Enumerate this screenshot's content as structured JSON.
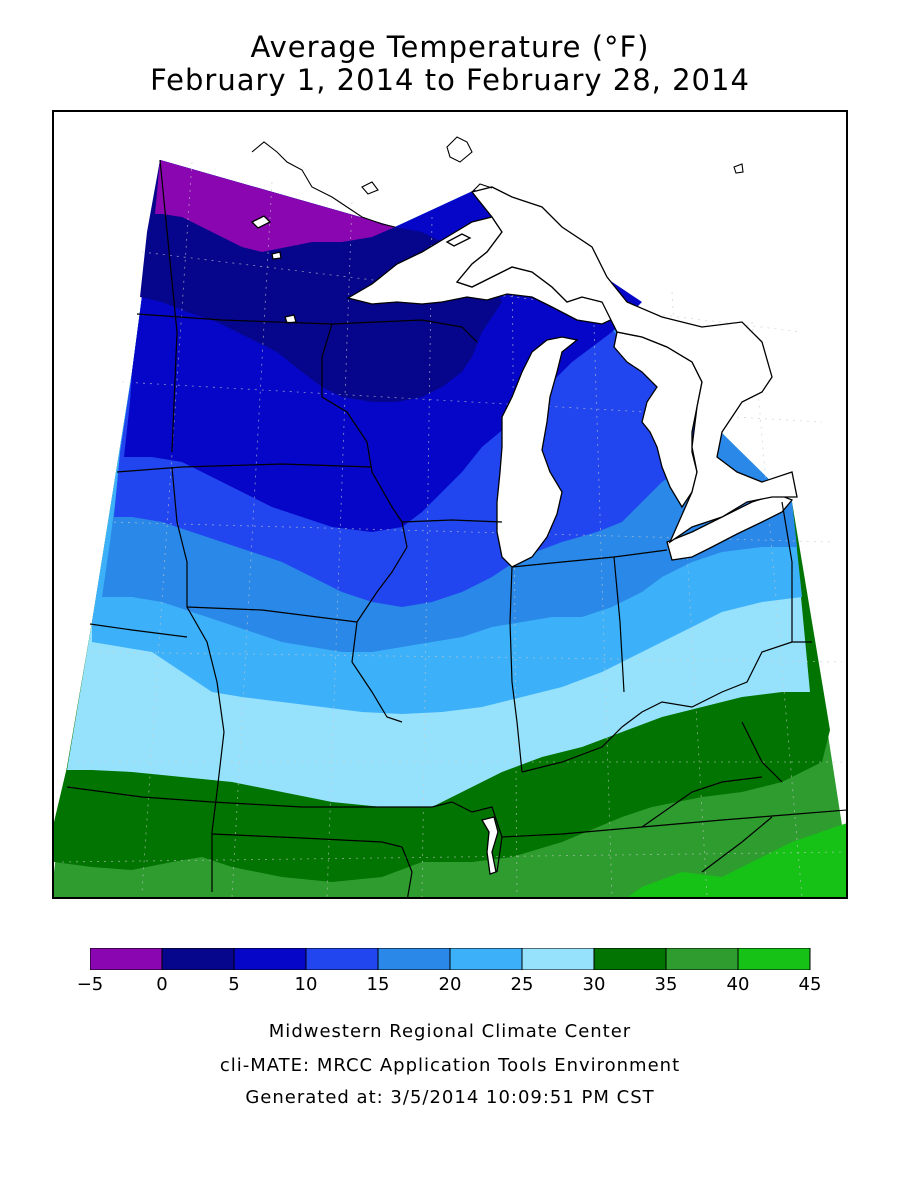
{
  "title": {
    "line1": "Average Temperature (°F)",
    "line2": "February 1, 2014 to February 28, 2014"
  },
  "map": {
    "region": "Upper Midwest / Great Lakes",
    "layers": [
      "temperature-contours",
      "state-boundaries",
      "county-grid",
      "great-lakes"
    ]
  },
  "legend": {
    "unit": "°F",
    "bins": [
      {
        "from": -5,
        "to": 0,
        "color": "#8a06b0"
      },
      {
        "from": 0,
        "to": 5,
        "color": "#06068c"
      },
      {
        "from": 5,
        "to": 10,
        "color": "#0606c8"
      },
      {
        "from": 10,
        "to": 15,
        "color": "#2146f0"
      },
      {
        "from": 15,
        "to": 20,
        "color": "#2a88e8"
      },
      {
        "from": 20,
        "to": 25,
        "color": "#3cb0f8"
      },
      {
        "from": 25,
        "to": 30,
        "color": "#96e2fc"
      },
      {
        "from": 30,
        "to": 35,
        "color": "#027402"
      },
      {
        "from": 35,
        "to": 40,
        "color": "#2f9c2f"
      },
      {
        "from": 40,
        "to": 45,
        "color": "#16c216"
      }
    ],
    "tick_labels": [
      "-5",
      "0",
      "5",
      "10",
      "15",
      "20",
      "25",
      "30",
      "35",
      "40",
      "45"
    ]
  },
  "credits": {
    "line1": "Midwestern Regional Climate Center",
    "line2": "cli-MATE: MRCC Application Tools Environment",
    "line3": "Generated at: 3/5/2014 10:09:51 PM CST"
  }
}
